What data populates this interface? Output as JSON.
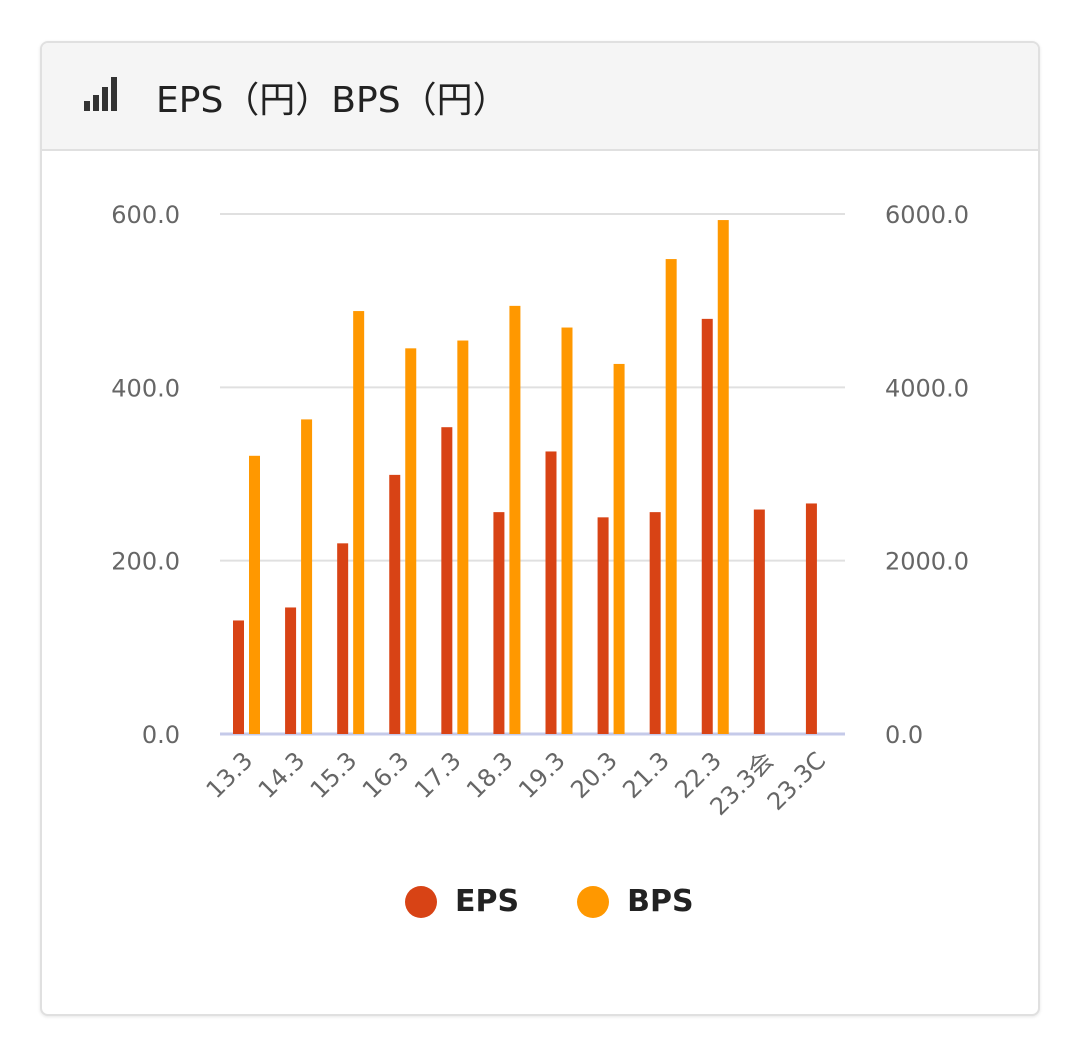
{
  "header": {
    "title": "EPS（円）BPS（円）",
    "icon": "signal-bars-icon"
  },
  "colors": {
    "eps": "#d84315",
    "bps": "#ff9800",
    "grid": "#e0e0e0",
    "baseline": "#c5cae9"
  },
  "legend": [
    {
      "label": "EPS",
      "color": "#d84315"
    },
    {
      "label": "BPS",
      "color": "#ff9800"
    }
  ],
  "chart_data": {
    "type": "bar",
    "categories": [
      "13.3",
      "14.3",
      "15.3",
      "16.3",
      "17.3",
      "18.3",
      "19.3",
      "20.3",
      "21.3",
      "22.3",
      "23.3会",
      "23.3C"
    ],
    "series": [
      {
        "name": "EPS",
        "axis": "left",
        "values": [
          131,
          146,
          220,
          299,
          354,
          256,
          326,
          250,
          256,
          479,
          259,
          266
        ]
      },
      {
        "name": "BPS",
        "axis": "right",
        "values": [
          3210,
          3630,
          4880,
          4450,
          4540,
          4940,
          4690,
          4270,
          5480,
          5930,
          null,
          null
        ]
      }
    ],
    "y_left": {
      "ylim": [
        0,
        600
      ],
      "ticks": [
        "0.0",
        "200.0",
        "400.0",
        "600.0"
      ]
    },
    "y_right": {
      "ylim": [
        0,
        6000
      ],
      "ticks": [
        "0.0",
        "2000.0",
        "4000.0",
        "6000.0"
      ]
    },
    "legend_position": "bottom",
    "grid": true
  }
}
